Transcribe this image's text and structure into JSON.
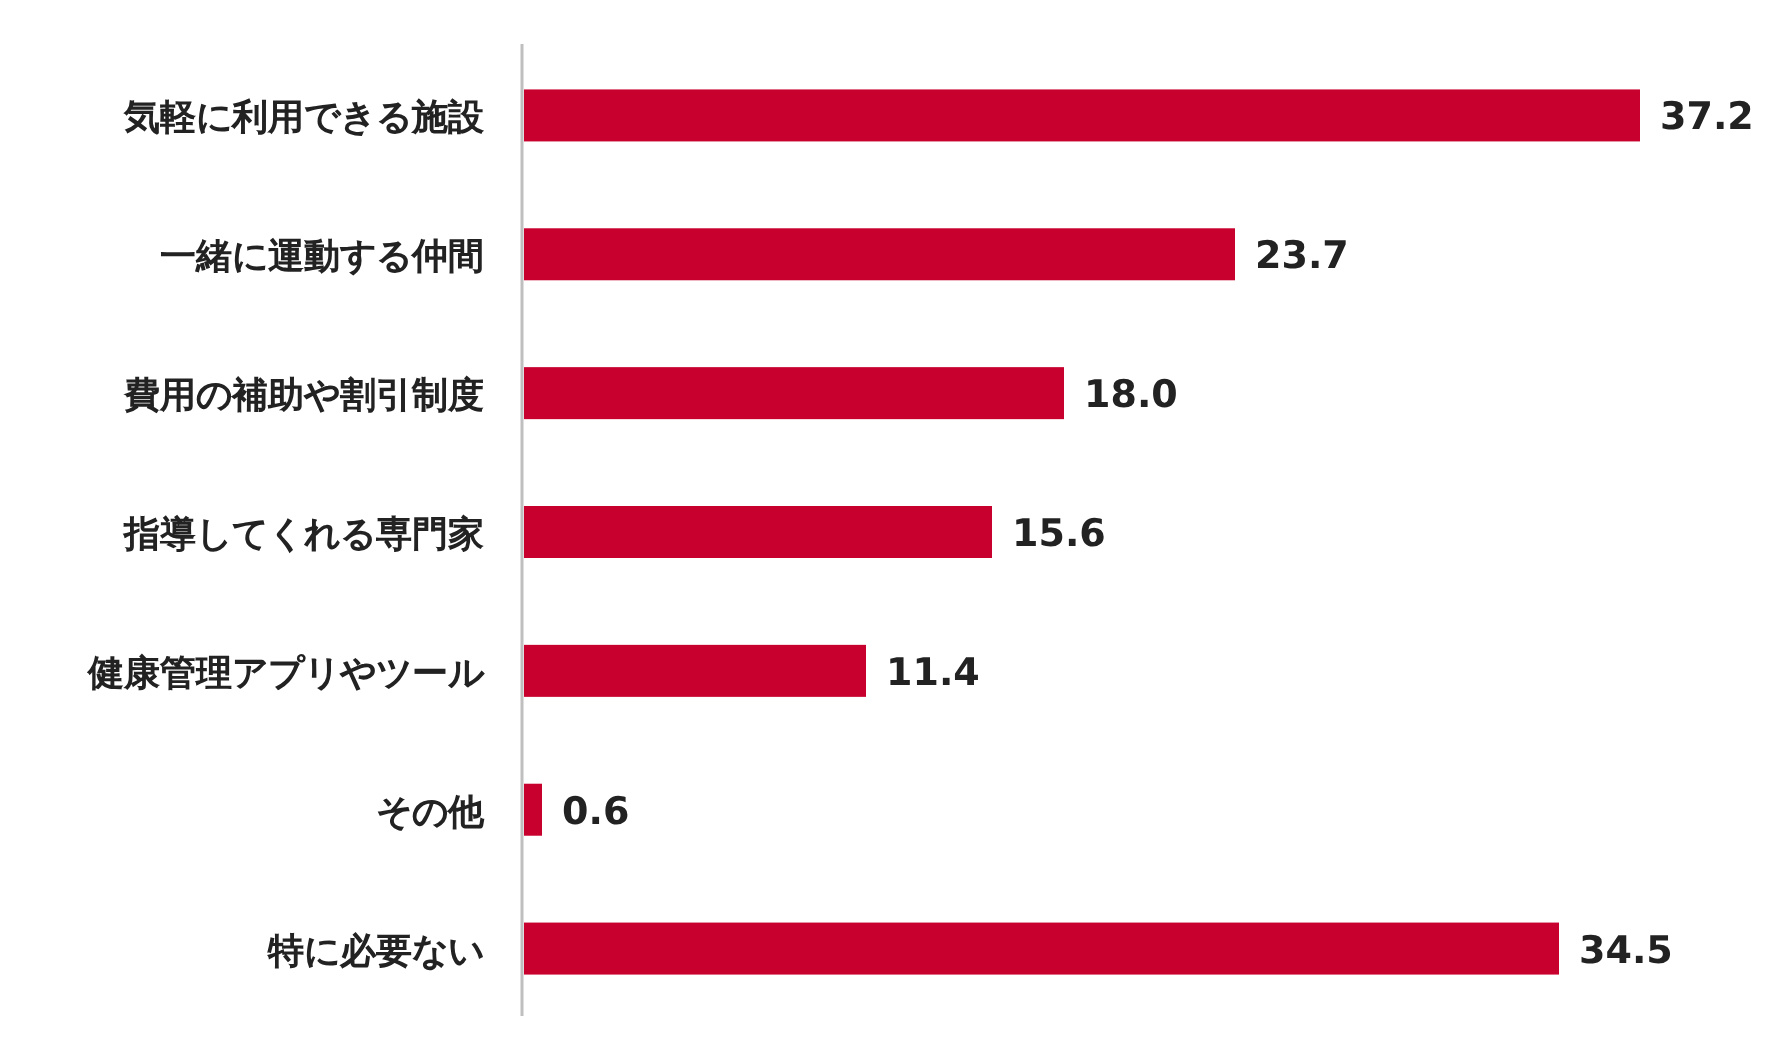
{
  "chart_data": {
    "type": "bar",
    "orientation": "horizontal",
    "categories": [
      "気軽に利用できる施設",
      "一緒に運動する仲間",
      "費用の補助や割引制度",
      "指導してくれる専門家",
      "健康管理アプリやツール",
      "その他",
      "特に必要ない"
    ],
    "values": [
      37.2,
      23.7,
      18.0,
      15.6,
      11.4,
      0.6,
      34.5
    ],
    "value_labels": [
      "37.2",
      "23.7",
      "18.0",
      "15.6",
      "11.4",
      "0.6",
      "34.5"
    ],
    "color": "#c8002d"
  }
}
